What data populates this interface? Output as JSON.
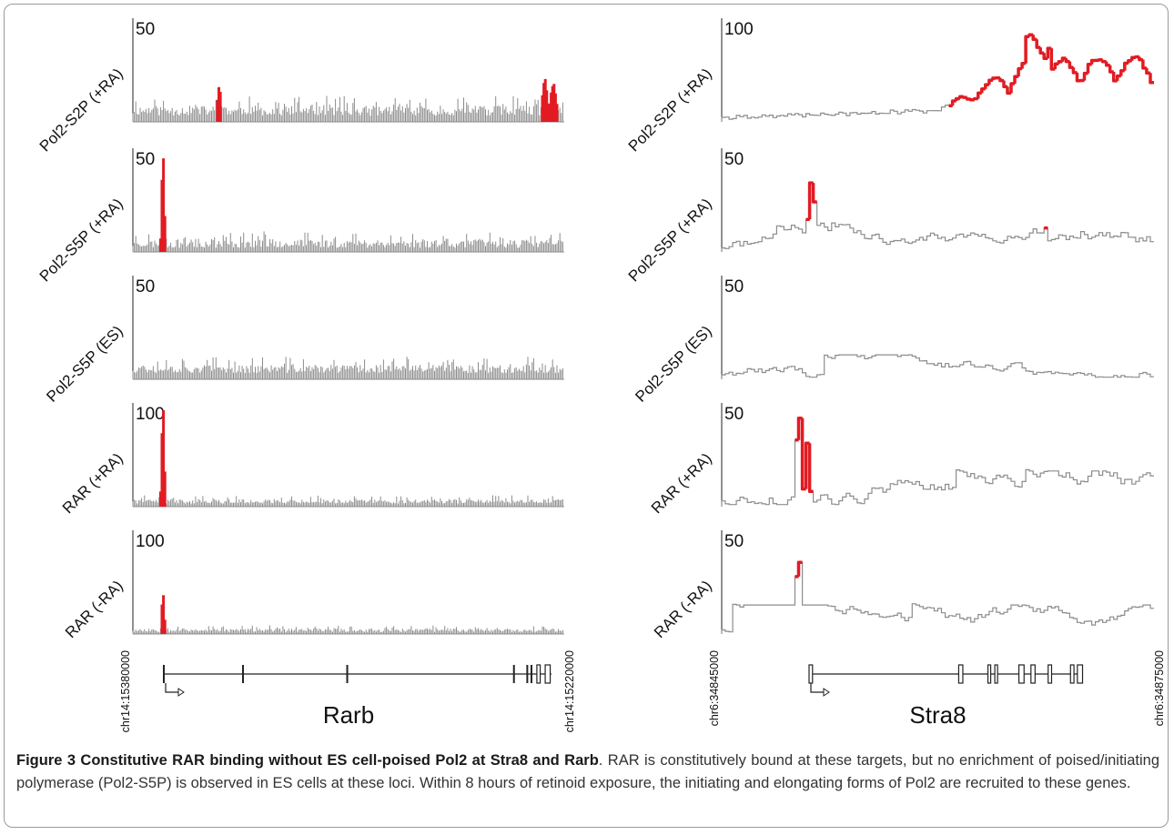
{
  "caption": {
    "title": "Figure 3 Constitutive RAR binding without ES cell-poised Pol2 at Stra8 and Rarb",
    "text": ". RAR is constitutively bound at these targets, but no enrichment of poised/initiating polymerase (Pol2-S5P) is observed in ES cells at these loci. Within 8 hours of retinoid exposure, the initiating and elongating forms of Pol2 are recruited to these genes."
  },
  "colors": {
    "signal": "#8c8c8c",
    "peak": "#e21b23",
    "axis": "#222222"
  },
  "chart_data": [
    {
      "type": "area",
      "gene": "Rarb",
      "region_start_label": "chr14:15380000",
      "region_end_label": "chr14:15220000",
      "tracks": [
        {
          "name": "Pol2-S2P (+RA)",
          "ymax_label": "50",
          "ylim": [
            0,
            50
          ],
          "baseline": 3,
          "noise": 6,
          "seed": 11,
          "peaks": [
            {
              "pos": 0.2,
              "height": 18,
              "width": 0.004
            },
            {
              "pos": 0.955,
              "height": 20,
              "width": 0.006
            },
            {
              "pos": 0.975,
              "height": 18,
              "width": 0.007
            }
          ]
        },
        {
          "name": "Pol2-S5P (+RA)",
          "ymax_label": "50",
          "ylim": [
            0,
            50
          ],
          "baseline": 2,
          "noise": 5,
          "seed": 23,
          "peaks": [
            {
              "pos": 0.07,
              "height": 48,
              "width": 0.003
            }
          ]
        },
        {
          "name": "Pol2-S5P (ES)",
          "ymax_label": "50",
          "ylim": [
            0,
            50
          ],
          "baseline": 3,
          "noise": 5,
          "seed": 37,
          "peaks": []
        },
        {
          "name": "RAR (+RA)",
          "ymax_label": "100",
          "ylim": [
            0,
            100
          ],
          "baseline": 3,
          "noise": 5,
          "seed": 41,
          "peaks": [
            {
              "pos": 0.07,
              "height": 98,
              "width": 0.003
            }
          ]
        },
        {
          "name": "RAR (-RA)",
          "ymax_label": "100",
          "ylim": [
            0,
            100
          ],
          "baseline": 2,
          "noise": 4,
          "seed": 53,
          "peaks": [
            {
              "pos": 0.07,
              "height": 40,
              "width": 0.003
            }
          ]
        }
      ],
      "exons": [
        0.0,
        0.19,
        0.44,
        0.84,
        0.872,
        0.882,
        0.895,
        0.915
      ],
      "exon_widths": [
        0.006,
        0.003,
        0.003,
        0.003,
        0.003,
        0.003,
        0.008,
        0.012
      ],
      "gene_span": [
        0.0,
        0.93
      ]
    },
    {
      "type": "area",
      "gene": "Stra8",
      "region_start_label": "chr6:34845000",
      "region_end_label": "chr6:34875000",
      "tracks": [
        {
          "name": "Pol2-S2P (+RA)",
          "ymax_label": "100",
          "ylim": [
            0,
            100
          ],
          "baseline": 4,
          "noise": 4,
          "seed": 61,
          "s2p_wave": true,
          "peaks": []
        },
        {
          "name": "Pol2-S5P (+RA)",
          "ymax_label": "50",
          "ylim": [
            0,
            50
          ],
          "baseline": 3,
          "noise": 5,
          "seed": 71,
          "peaks": [
            {
              "pos": 0.205,
              "height": 34,
              "width": 0.008
            },
            {
              "pos": 0.745,
              "height": 12,
              "width": 0.004
            }
          ]
        },
        {
          "name": "Pol2-S5P (ES)",
          "ymax_label": "50",
          "ylim": [
            0,
            50
          ],
          "baseline": 3,
          "noise": 4,
          "seed": 83,
          "peaks": []
        },
        {
          "name": "RAR (+RA)",
          "ymax_label": "50",
          "ylim": [
            0,
            50
          ],
          "baseline": 4,
          "noise": 6,
          "seed": 97,
          "peaks": [
            {
              "pos": 0.175,
              "height": 48,
              "width": 0.006
            },
            {
              "pos": 0.195,
              "height": 30,
              "width": 0.005
            }
          ]
        },
        {
          "name": "RAR (-RA)",
          "ymax_label": "50",
          "ylim": [
            0,
            50
          ],
          "baseline": 3,
          "noise": 5,
          "seed": 103,
          "peaks": [
            {
              "pos": 0.175,
              "height": 36,
              "width": 0.008
            }
          ]
        }
      ],
      "exons": [
        0.0,
        0.435,
        0.52,
        0.54,
        0.61,
        0.645,
        0.695,
        0.76,
        0.78
      ],
      "exon_widths": [
        0.01,
        0.012,
        0.008,
        0.008,
        0.015,
        0.012,
        0.01,
        0.01,
        0.015
      ],
      "gene_span": [
        0.0,
        0.795
      ]
    }
  ]
}
